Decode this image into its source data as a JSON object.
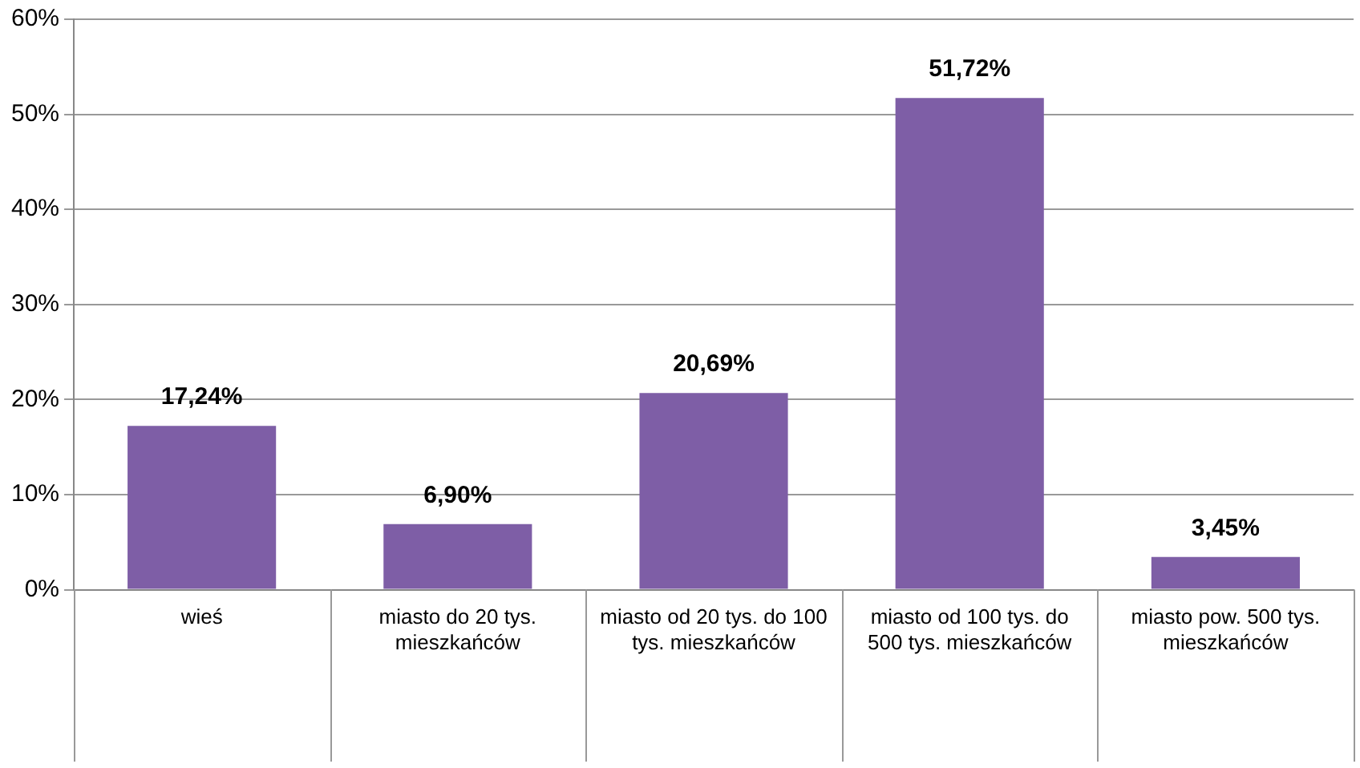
{
  "chart_data": {
    "type": "bar",
    "categories": [
      "wieś",
      "miasto do 20 tys. mieszkańców",
      "miasto od 20 tys. do 100 tys. mieszkańców",
      "miasto od 100 tys. do 500 tys. mieszkańców",
      "miasto pow. 500 tys. mieszkańców"
    ],
    "values": [
      17.24,
      6.9,
      20.69,
      51.72,
      3.45
    ],
    "value_labels": [
      "17,24%",
      "6,90%",
      "20,69%",
      "51,72%",
      "3,45%"
    ],
    "color": "#7e5ea6",
    "ylim": [
      0,
      60
    ],
    "yticks": [
      {
        "value": 0,
        "label": "0%"
      },
      {
        "value": 10,
        "label": "10%"
      },
      {
        "value": 20,
        "label": "20%"
      },
      {
        "value": 30,
        "label": "30%"
      },
      {
        "value": 40,
        "label": "40%"
      },
      {
        "value": 50,
        "label": "50%"
      },
      {
        "value": 60,
        "label": "60%"
      }
    ],
    "grid": "y"
  }
}
